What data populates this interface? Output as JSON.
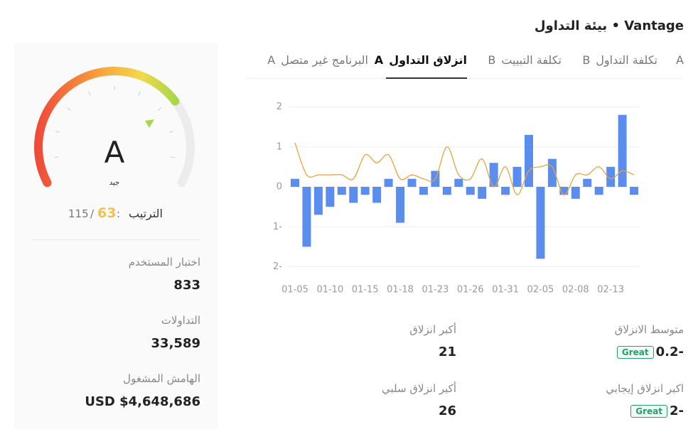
{
  "header": {
    "title": "Vantage • بيئة التداول"
  },
  "score_card": {
    "grade": "A",
    "grade_label": "جيد",
    "rank": {
      "label": "الترتيب",
      "separator": ":",
      "value": "63",
      "slash": "/",
      "total": "115"
    },
    "stats": [
      {
        "label": "اختبار المستخدم",
        "value": "833"
      },
      {
        "label": "التداولات",
        "value": "33,589"
      },
      {
        "label": "الهامش المشغول",
        "value": "USD $4,648,686"
      }
    ]
  },
  "tabs": [
    {
      "grade": "A"
    },
    {
      "grade": "B",
      "label": "تكلفة التداول"
    },
    {
      "grade": "B",
      "label": "تكلفة التبييت"
    },
    {
      "grade": "A",
      "label": "انزلاق التداول",
      "active": true
    },
    {
      "grade": "A",
      "label": "البرنامج غير متصل"
    }
  ],
  "chart_data": {
    "type": "bar",
    "categories": [
      "01-05",
      null,
      null,
      "01-10",
      null,
      null,
      "01-15",
      null,
      null,
      "01-18",
      null,
      null,
      "01-23",
      null,
      null,
      "01-26",
      null,
      null,
      "01-31",
      null,
      null,
      "02-05",
      null,
      null,
      "02-08",
      null,
      null,
      "02-13",
      null,
      null
    ],
    "series": [
      {
        "type": "bar",
        "color": "#5b8def",
        "values": [
          0.2,
          -1.5,
          -0.7,
          -0.5,
          -0.2,
          -0.4,
          -0.2,
          -0.4,
          0.2,
          -0.9,
          0.2,
          -0.2,
          0.4,
          -0.2,
          0.2,
          -0.2,
          -0.3,
          0.6,
          -0.2,
          0.5,
          1.3,
          -1.8,
          0.7,
          -0.2,
          -0.3,
          0.2,
          -0.2,
          0.5,
          1.8,
          -0.2
        ]
      },
      {
        "type": "line",
        "color": "#e8a33d",
        "values": [
          1.1,
          0.3,
          0.3,
          0.3,
          0.3,
          0.2,
          0.8,
          0.6,
          0.8,
          0.2,
          0.3,
          0.2,
          0.2,
          1.0,
          0.3,
          0.2,
          0.7,
          0.0,
          0.5,
          -0.2,
          0.4,
          0.5,
          0.5,
          -0.2,
          0.3,
          0.3,
          0.5,
          0.2,
          0.4,
          0.3
        ]
      }
    ],
    "ylim": [
      -2,
      2
    ],
    "yticks": [
      2,
      1,
      0,
      {
        "value": -1,
        "label": "1-"
      },
      {
        "value": -2,
        "label": "2-"
      }
    ],
    "grid": true
  },
  "slippage_stats": [
    {
      "label": "متوسط الانزلاق",
      "value": "0.2-",
      "badge": "Great"
    },
    {
      "label": "أكبر انزلاق",
      "value": "21"
    },
    {
      "label": "اكبر انزلاق إيجابي",
      "value": "2-",
      "badge": "Great"
    },
    {
      "label": "أكبر انزلاق سلبي",
      "value": "26"
    }
  ]
}
